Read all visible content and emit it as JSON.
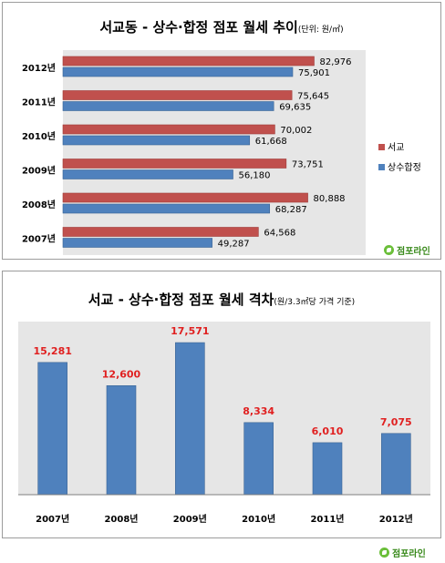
{
  "chart1": {
    "title_main": "서교동 - 상수·합정 점포 월세 추이",
    "title_sub": "(단위: 원/㎡)",
    "legend": [
      {
        "label": "서교",
        "color": "#c0504d"
      },
      {
        "label": "상수합정",
        "color": "#4f81bd"
      }
    ],
    "logo": "점포라인"
  },
  "chart2": {
    "title_main": "서교 - 상수·합정 점포 월세 격차",
    "title_sub": "(원/3.3㎡당 가격 기준)",
    "logo": "점포라인"
  },
  "chart_data": [
    {
      "type": "bar",
      "orientation": "horizontal",
      "title": "서교동 - 상수·합정 점포 월세 추이(단위: 원/㎡)",
      "categories": [
        "2012년",
        "2011년",
        "2010년",
        "2009년",
        "2008년",
        "2007년"
      ],
      "series": [
        {
          "name": "서교",
          "color": "#c0504d",
          "values": [
            82976,
            75645,
            70002,
            73751,
            80888,
            64568
          ],
          "labels": [
            "82,976",
            "75,645",
            "70,002",
            "73,751",
            "80,888",
            "64,568"
          ]
        },
        {
          "name": "상수합정",
          "color": "#4f81bd",
          "values": [
            75901,
            69635,
            61668,
            56180,
            68287,
            49287
          ],
          "labels": [
            "75,901",
            "69,635",
            "61,668",
            "56,180",
            "68,287",
            "49,287"
          ]
        }
      ],
      "xlim": [
        0,
        100000
      ],
      "legend": "right",
      "grid": false
    },
    {
      "type": "bar",
      "orientation": "vertical",
      "title": "서교 - 상수·합정 점포 월세 격차(원/3.3㎡당 가격 기준)",
      "categories": [
        "2007년",
        "2008년",
        "2009년",
        "2010년",
        "2011년",
        "2012년"
      ],
      "values": [
        15281,
        12600,
        17571,
        8334,
        6010,
        7075
      ],
      "labels": [
        "15,281",
        "12,600",
        "17,571",
        "8,334",
        "6,010",
        "7,075"
      ],
      "color": "#4f81bd",
      "label_color": "#e02020",
      "ylim": [
        0,
        20000
      ],
      "grid": false
    }
  ]
}
